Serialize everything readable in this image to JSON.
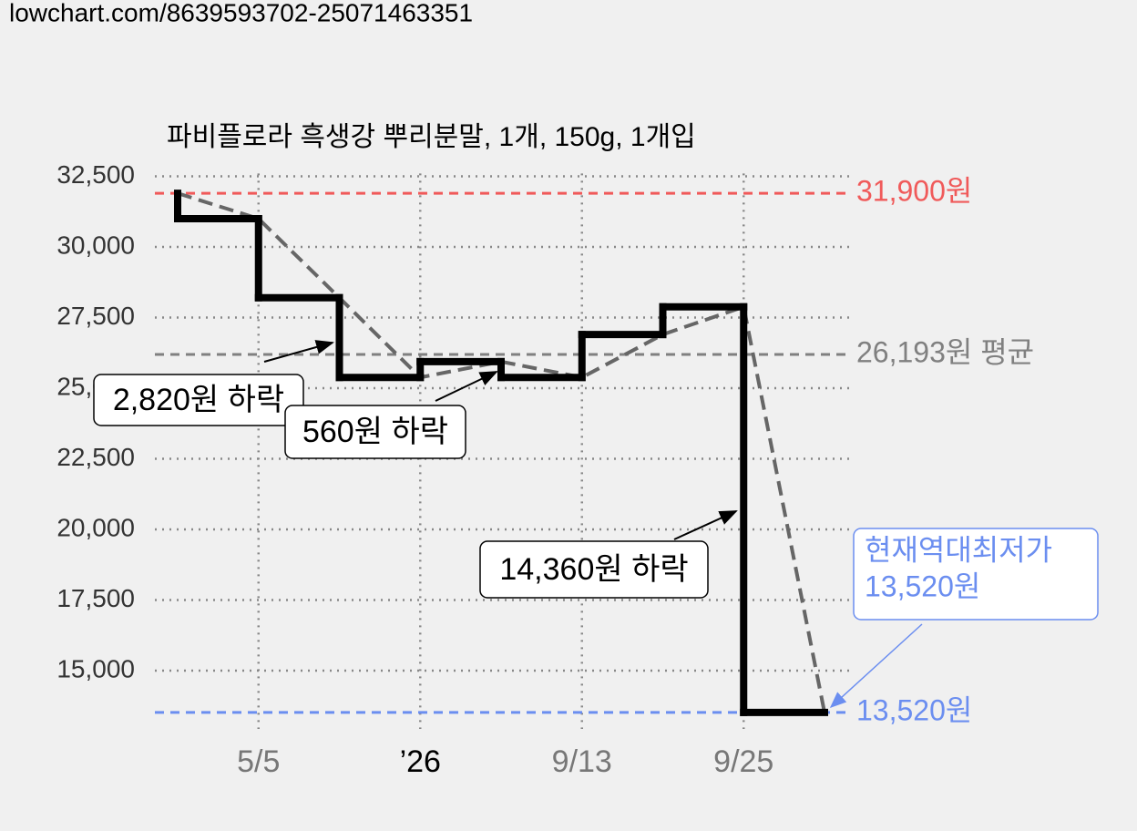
{
  "url": "lowchart.com/8639593702-25071463351",
  "chart_data": {
    "type": "line",
    "step": true,
    "title": "파비플로라 흑생강 뿌리분말, 1개, 150g, 1개입",
    "categories": [
      null,
      "5/5",
      null,
      "’26",
      null,
      "9/13",
      null,
      "9/25",
      null
    ],
    "values": [
      31900,
      31000,
      28200,
      25380,
      25940,
      25380,
      26900,
      27880,
      13520
    ],
    "color": "#000000",
    "trend_color": "#666666",
    "ylim": [
      13000,
      32600
    ],
    "yticks": [
      {
        "value": 15000,
        "label": "15,000"
      },
      {
        "value": 17500,
        "label": "17,500"
      },
      {
        "value": 20000,
        "label": "20,000"
      },
      {
        "value": 22500,
        "label": "22,500"
      },
      {
        "value": 25000,
        "label": "25,000"
      },
      {
        "value": 27500,
        "label": "27,500"
      },
      {
        "value": 30000,
        "label": "30,000"
      },
      {
        "value": 32500,
        "label": "32,500"
      }
    ],
    "grid": true,
    "reference_lines": [
      {
        "value": 31900,
        "label": "31,900원",
        "color": "#f05a5a"
      },
      {
        "value": 26193,
        "label": "26,193원 평균",
        "color": "#808080"
      },
      {
        "value": 13520,
        "label": "13,520원",
        "color": "#6b8ef0"
      }
    ],
    "annotations": [
      {
        "text": "2,820원 하락"
      },
      {
        "text": "560원 하락"
      },
      {
        "text": "14,360원 하락"
      },
      {
        "lines": [
          "현재역대최저가",
          "13,520원"
        ],
        "color": "#6b8ef0"
      }
    ]
  }
}
